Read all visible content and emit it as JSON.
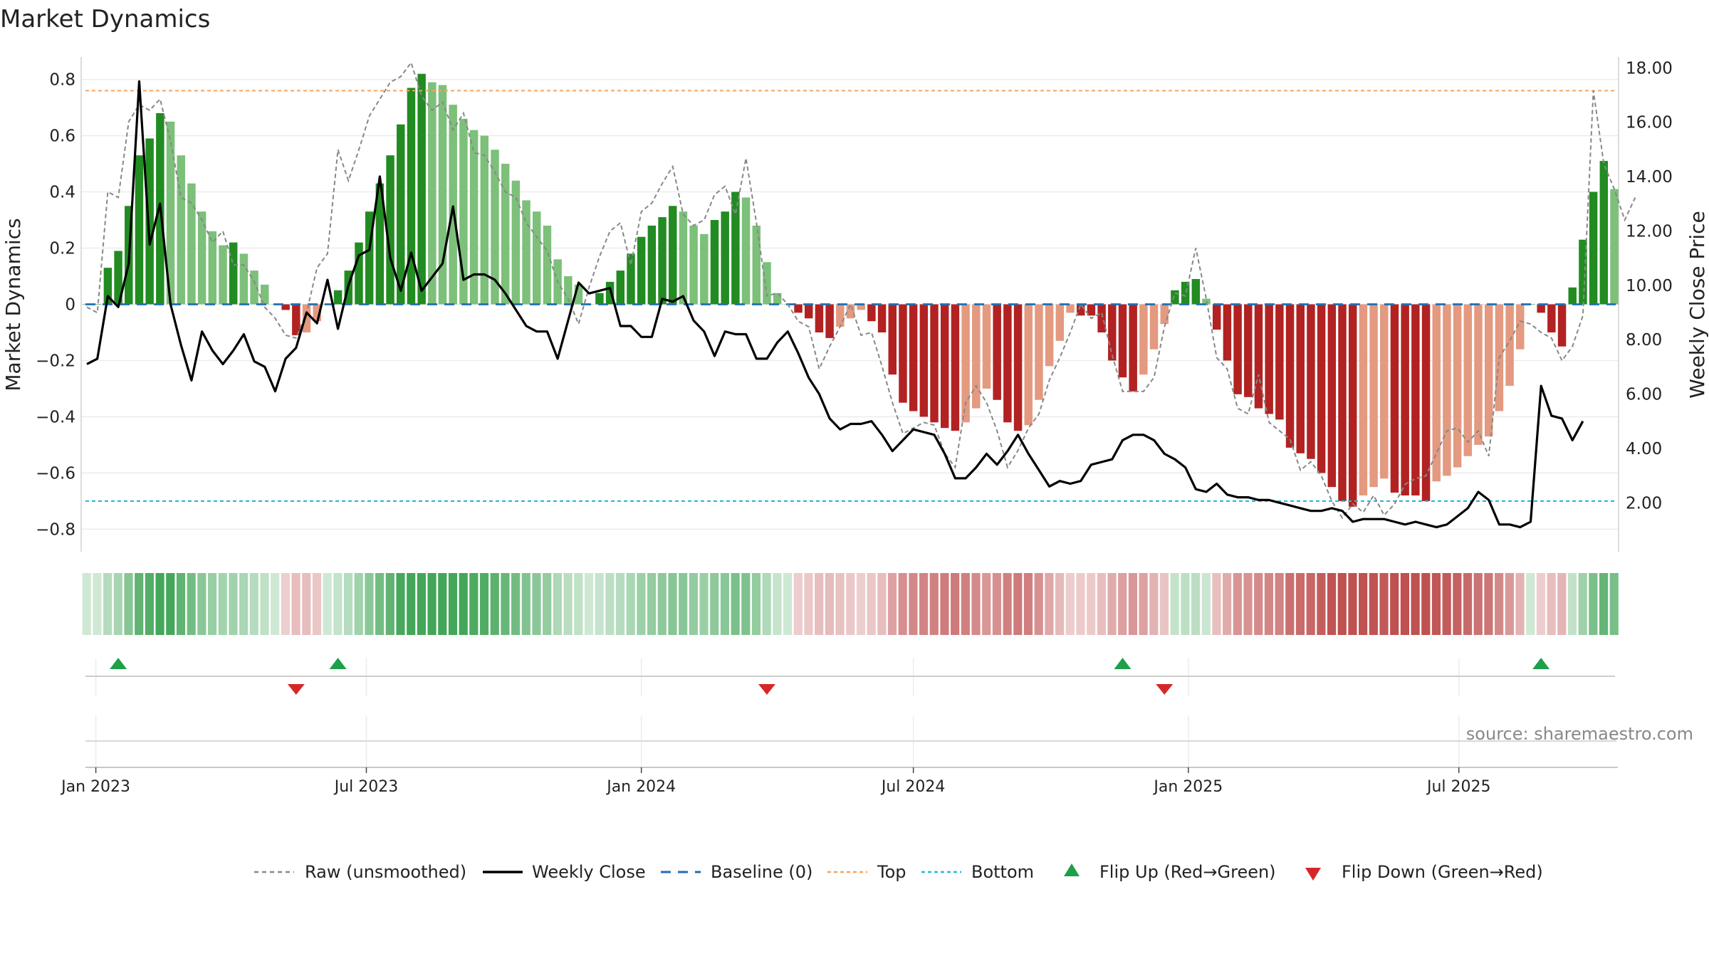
{
  "title": "Market Dynamics",
  "source_note": "source: sharemaestro.com",
  "colors": {
    "pos_strong": "#228b22",
    "pos_weak": "#7cc07a",
    "neg_strong": "#b22222",
    "neg_weak": "#e39a80",
    "top_line": "#f4a460",
    "bottom_line": "#22bcd4",
    "baseline": "#1f6fb4",
    "raw_line": "#888888",
    "close_line": "#000000",
    "flip_up": "#1ea04a",
    "flip_down": "#d62728"
  },
  "chart_data": {
    "type": "bar",
    "title": "Market Dynamics",
    "ylabel": "Market Dynamics",
    "y2label": "Weekly Close Price",
    "ylim": [
      -0.88,
      0.88
    ],
    "y2lim": [
      0.2,
      18.4
    ],
    "yticks": [
      "0.8",
      "0.6",
      "0.4",
      "0.2",
      "0",
      "−0.2",
      "−0.4",
      "−0.6",
      "−0.8"
    ],
    "y2ticks": [
      "18.00",
      "16.00",
      "14.00",
      "12.00",
      "10.00",
      "8.00",
      "6.00",
      "4.00",
      "2.00"
    ],
    "xticks": [
      "Jan 2023",
      "Jul 2023",
      "Jan 2024",
      "Jul 2024",
      "Jan 2025",
      "Jul 2025"
    ],
    "top_level": 0.76,
    "bottom_level": -0.7,
    "baseline": 0,
    "smoothed": [
      0.0,
      0.0,
      0.13,
      0.19,
      0.35,
      0.53,
      0.59,
      0.68,
      0.65,
      0.53,
      0.43,
      0.33,
      0.26,
      0.21,
      0.22,
      0.18,
      0.12,
      0.07,
      0.0,
      -0.02,
      -0.11,
      -0.1,
      -0.06,
      0.0,
      0.05,
      0.12,
      0.22,
      0.33,
      0.43,
      0.53,
      0.64,
      0.77,
      0.82,
      0.79,
      0.78,
      0.71,
      0.66,
      0.62,
      0.6,
      0.55,
      0.5,
      0.44,
      0.37,
      0.33,
      0.28,
      0.16,
      0.1,
      0.07,
      0.0,
      0.04,
      0.08,
      0.12,
      0.18,
      0.24,
      0.28,
      0.31,
      0.35,
      0.33,
      0.28,
      0.25,
      0.3,
      0.33,
      0.4,
      0.38,
      0.28,
      0.15,
      0.04,
      0.0,
      -0.03,
      -0.05,
      -0.1,
      -0.12,
      -0.08,
      -0.05,
      -0.02,
      -0.06,
      -0.1,
      -0.25,
      -0.35,
      -0.38,
      -0.4,
      -0.42,
      -0.44,
      -0.45,
      -0.42,
      -0.37,
      -0.3,
      -0.34,
      -0.42,
      -0.45,
      -0.43,
      -0.34,
      -0.22,
      -0.13,
      -0.03,
      -0.04,
      -0.04,
      -0.1,
      -0.2,
      -0.26,
      -0.31,
      -0.25,
      -0.16,
      -0.07,
      0.05,
      0.08,
      0.09,
      0.02,
      -0.09,
      -0.2,
      -0.32,
      -0.33,
      -0.37,
      -0.39,
      -0.41,
      -0.51,
      -0.53,
      -0.55,
      -0.6,
      -0.65,
      -0.7,
      -0.72,
      -0.68,
      -0.65,
      -0.62,
      -0.67,
      -0.68,
      -0.68,
      -0.7,
      -0.63,
      -0.61,
      -0.58,
      -0.54,
      -0.5,
      -0.47,
      -0.38,
      -0.29,
      -0.16,
      0.0,
      -0.03,
      -0.1,
      -0.15,
      0.06,
      0.23,
      0.4,
      0.51,
      0.41
    ],
    "raw": [
      -0.01,
      -0.03,
      0.4,
      0.38,
      0.65,
      0.71,
      0.69,
      0.73,
      0.58,
      0.38,
      0.36,
      0.3,
      0.22,
      0.26,
      0.14,
      0.14,
      0.08,
      -0.01,
      -0.05,
      -0.11,
      -0.12,
      -0.03,
      0.13,
      0.18,
      0.55,
      0.44,
      0.55,
      0.67,
      0.73,
      0.79,
      0.81,
      0.86,
      0.74,
      0.69,
      0.72,
      0.62,
      0.68,
      0.54,
      0.53,
      0.47,
      0.4,
      0.38,
      0.29,
      0.24,
      0.19,
      0.08,
      0.02,
      -0.07,
      0.06,
      0.17,
      0.26,
      0.29,
      0.14,
      0.33,
      0.36,
      0.43,
      0.49,
      0.32,
      0.28,
      0.3,
      0.39,
      0.42,
      0.32,
      0.52,
      0.29,
      0.03,
      0.04,
      0.0,
      -0.06,
      -0.08,
      -0.23,
      -0.15,
      -0.08,
      0.0,
      -0.11,
      -0.1,
      -0.22,
      -0.35,
      -0.46,
      -0.44,
      -0.42,
      -0.43,
      -0.53,
      -0.58,
      -0.35,
      -0.29,
      -0.35,
      -0.45,
      -0.58,
      -0.52,
      -0.44,
      -0.39,
      -0.27,
      -0.19,
      -0.1,
      0.0,
      -0.05,
      -0.03,
      -0.18,
      -0.31,
      -0.31,
      -0.31,
      -0.26,
      -0.08,
      0.04,
      0.03,
      0.2,
      0.02,
      -0.19,
      -0.23,
      -0.37,
      -0.39,
      -0.25,
      -0.42,
      -0.45,
      -0.48,
      -0.59,
      -0.56,
      -0.61,
      -0.7,
      -0.76,
      -0.71,
      -0.74,
      -0.68,
      -0.75,
      -0.71,
      -0.64,
      -0.62,
      -0.61,
      -0.53,
      -0.45,
      -0.44,
      -0.49,
      -0.45,
      -0.54,
      -0.19,
      -0.13,
      -0.06,
      -0.07,
      -0.1,
      -0.12,
      -0.2,
      -0.15,
      -0.04,
      0.76,
      0.5,
      0.41,
      0.3,
      0.38
    ],
    "weekly_close": [
      7.1,
      7.3,
      9.6,
      9.2,
      10.8,
      17.5,
      11.5,
      13.0,
      9.3,
      7.8,
      6.5,
      8.3,
      7.6,
      7.1,
      7.6,
      8.2,
      7.2,
      7.0,
      6.1,
      7.3,
      7.7,
      9.0,
      8.6,
      10.2,
      8.4,
      10.0,
      11.1,
      11.3,
      14.0,
      11.0,
      9.8,
      11.2,
      9.8,
      10.3,
      10.8,
      12.9,
      10.2,
      10.4,
      10.4,
      10.2,
      9.7,
      9.1,
      8.5,
      8.3,
      8.3,
      7.3,
      8.7,
      10.1,
      9.7,
      9.8,
      9.9,
      8.5,
      8.5,
      8.1,
      8.1,
      9.5,
      9.4,
      9.6,
      8.7,
      8.3,
      7.4,
      8.3,
      8.2,
      8.2,
      7.3,
      7.3,
      7.9,
      8.3,
      7.5,
      6.6,
      6.0,
      5.1,
      4.7,
      4.9,
      4.9,
      5.0,
      4.5,
      3.9,
      4.3,
      4.7,
      4.6,
      4.5,
      3.8,
      2.9,
      2.9,
      3.3,
      3.8,
      3.4,
      3.9,
      4.5,
      3.8,
      3.2,
      2.6,
      2.8,
      2.7,
      2.8,
      3.4,
      3.5,
      3.6,
      4.3,
      4.5,
      4.5,
      4.3,
      3.8,
      3.6,
      3.3,
      2.5,
      2.4,
      2.7,
      2.3,
      2.2,
      2.2,
      2.1,
      2.1,
      2.0,
      1.9,
      1.8,
      1.7,
      1.7,
      1.8,
      1.7,
      1.3,
      1.4,
      1.4,
      1.4,
      1.3,
      1.2,
      1.3,
      1.2,
      1.1,
      1.2,
      1.5,
      1.8,
      2.4,
      2.1,
      1.2,
      1.2,
      1.1,
      1.3,
      6.3,
      5.2,
      5.1,
      4.3,
      5.0
    ],
    "flips": [
      {
        "dir": "up",
        "date": "2023-01-16"
      },
      {
        "dir": "down",
        "date": "2023-05-15"
      },
      {
        "dir": "up",
        "date": "2023-06-12"
      },
      {
        "dir": "down",
        "date": "2024-03-25"
      },
      {
        "dir": "up",
        "date": "2024-11-18"
      },
      {
        "dir": "down",
        "date": "2024-12-16"
      },
      {
        "dir": "up",
        "date": "2025-08-25"
      }
    ]
  },
  "legend": {
    "raw": "Raw (unsmoothed)",
    "close": "Weekly Close",
    "baseline": "Baseline (0)",
    "top": "Top",
    "bottom": "Bottom",
    "flip_up": "Flip Up (Red→Green)",
    "flip_down": "Flip Down (Green→Red)"
  }
}
